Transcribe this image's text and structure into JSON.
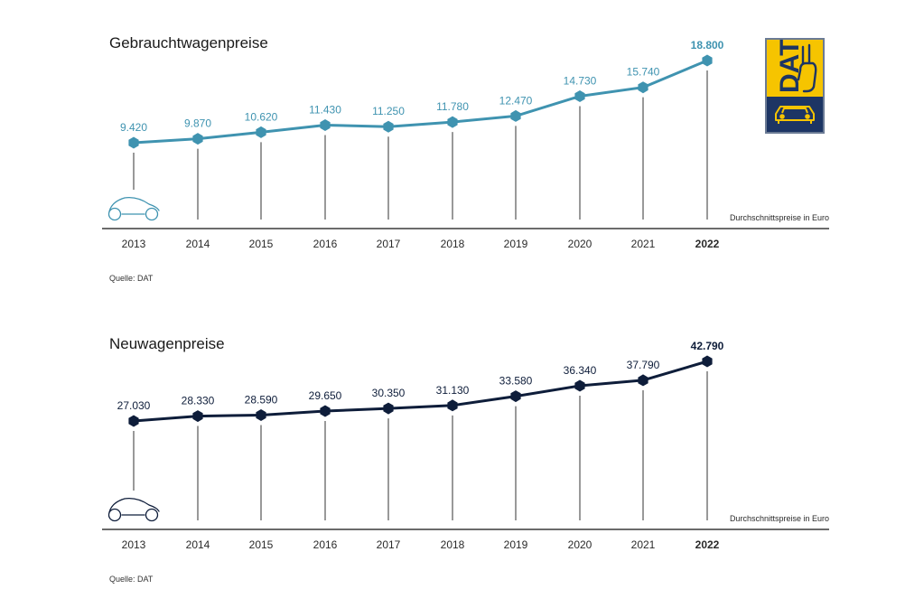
{
  "logo": {
    "text": "DAT",
    "icon": "dat-logo-icon",
    "colors": {
      "yellow": "#f6c400",
      "navy": "#1d3564",
      "border": "#6b7b95"
    }
  },
  "chart_data": [
    {
      "type": "line",
      "title": "Gebrauchtwagenpreise",
      "categories": [
        "2013",
        "2014",
        "2015",
        "2016",
        "2017",
        "2018",
        "2019",
        "2020",
        "2021",
        "2022"
      ],
      "series": [
        {
          "values": [
            9420,
            9870,
            10620,
            11430,
            11250,
            11780,
            12470,
            14730,
            15740,
            18800
          ]
        }
      ],
      "value_labels": [
        "9.420",
        "9.870",
        "10.620",
        "11.430",
        "11.250",
        "11.780",
        "12.470",
        "14.730",
        "15.740",
        "18.800"
      ],
      "unit_label": "Durchschnittspreise in Euro",
      "source": "Quelle: DAT",
      "highlight_last": true,
      "color": "#3f93b0",
      "label_color": "#3f93b0",
      "icon": "car-outline-icon",
      "grid": false
    },
    {
      "type": "line",
      "title": "Neuwagenpreise",
      "categories": [
        "2013",
        "2014",
        "2015",
        "2016",
        "2017",
        "2018",
        "2019",
        "2020",
        "2021",
        "2022"
      ],
      "series": [
        {
          "values": [
            27030,
            28330,
            28590,
            29650,
            30350,
            31130,
            33580,
            36340,
            37790,
            42790
          ]
        }
      ],
      "value_labels": [
        "27.030",
        "28.330",
        "28.590",
        "29.650",
        "30.350",
        "31.130",
        "33.580",
        "36.340",
        "37.790",
        "42.790"
      ],
      "unit_label": "Durchschnittspreise in Euro",
      "source": "Quelle: DAT",
      "highlight_last": true,
      "color": "#0e1d3a",
      "label_color": "#0e1d3a",
      "icon": "car-outline-icon",
      "grid": false
    }
  ]
}
